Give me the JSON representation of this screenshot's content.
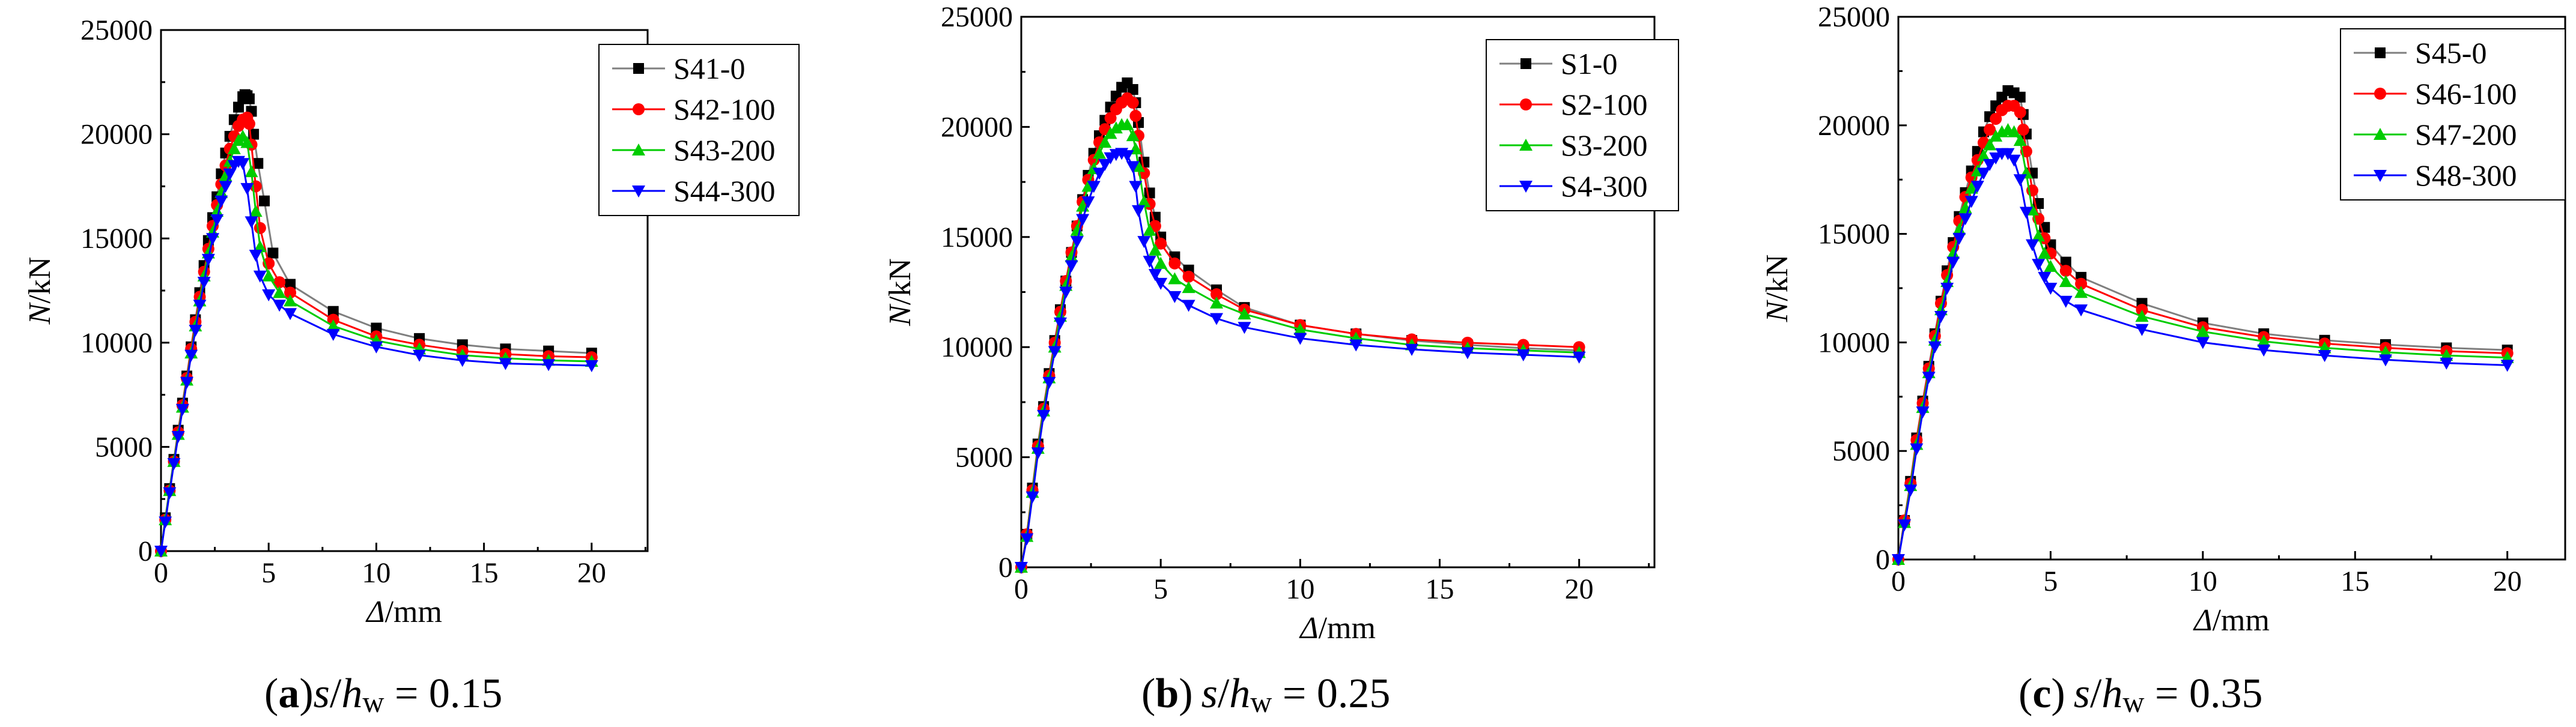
{
  "colors": {
    "series": [
      "#000000",
      "#ff0000",
      "#00cc00",
      "#0000ff"
    ],
    "axis": "#000000",
    "line_gray": "#7f7f7f"
  },
  "chart_data": [
    {
      "type": "line",
      "panel_label": "a",
      "caption": {
        "open": "(",
        "label": "a",
        "close": ")",
        "var_s": "s",
        "slash": "/",
        "var_h": "h",
        "sub": "w",
        "equals": " = ",
        "value": "0.15"
      },
      "xlabel": {
        "symbol": "Δ",
        "unit": "/mm"
      },
      "ylabel": {
        "symbol": "N",
        "unit": "/kN"
      },
      "xlim": [
        0,
        22.6
      ],
      "ylim": [
        0,
        25000
      ],
      "xticks": [
        "0",
        "5",
        "10",
        "15",
        "20"
      ],
      "yticks": [
        "0",
        "5000",
        "10000",
        "15000",
        "20000",
        "25000"
      ],
      "legend": "top-right",
      "series": [
        {
          "name": "S41-0",
          "marker": "square",
          "x": [
            0,
            0.2,
            0.4,
            0.6,
            0.8,
            1.0,
            1.2,
            1.4,
            1.6,
            1.8,
            2.0,
            2.2,
            2.4,
            2.6,
            2.8,
            3.0,
            3.2,
            3.4,
            3.6,
            3.8,
            3.9,
            4.0,
            4.1,
            4.2,
            4.3,
            4.5,
            4.8,
            5.2,
            6.0,
            8.0,
            10.0,
            12.0,
            14.0,
            16.0,
            18.0,
            20.0
          ],
          "y": [
            0,
            1600,
            3000,
            4400,
            5800,
            7100,
            8400,
            9800,
            11100,
            12400,
            13700,
            14900,
            16000,
            17000,
            18100,
            19100,
            19900,
            20700,
            21300,
            21800,
            21900,
            21850,
            21700,
            21100,
            20000,
            18600,
            16800,
            14300,
            12800,
            11500,
            10700,
            10200,
            9900,
            9700,
            9600,
            9500
          ]
        },
        {
          "name": "S42-100",
          "marker": "circle",
          "x": [
            0,
            0.2,
            0.4,
            0.6,
            0.8,
            1.0,
            1.2,
            1.4,
            1.6,
            1.8,
            2.0,
            2.2,
            2.4,
            2.6,
            2.8,
            3.0,
            3.2,
            3.4,
            3.6,
            3.8,
            4.0,
            4.1,
            4.2,
            4.4,
            4.6,
            5.0,
            5.5,
            6.0,
            8.0,
            10.0,
            12.0,
            14.0,
            16.0,
            18.0,
            20.0
          ],
          "y": [
            0,
            1500,
            2900,
            4300,
            5700,
            7000,
            8300,
            9700,
            11000,
            12200,
            13400,
            14500,
            15600,
            16600,
            17600,
            18500,
            19300,
            19900,
            20400,
            20700,
            20800,
            20500,
            19500,
            17500,
            15500,
            13800,
            12900,
            12400,
            11100,
            10300,
            9900,
            9600,
            9450,
            9350,
            9300
          ]
        },
        {
          "name": "S43-200",
          "marker": "triangle-up",
          "x": [
            0,
            0.2,
            0.4,
            0.6,
            0.8,
            1.0,
            1.2,
            1.4,
            1.6,
            1.8,
            2.0,
            2.2,
            2.4,
            2.6,
            2.8,
            3.0,
            3.2,
            3.4,
            3.6,
            3.8,
            4.0,
            4.2,
            4.4,
            4.6,
            5.0,
            5.5,
            6.0,
            8.0,
            10.0,
            12.0,
            14.0,
            16.0,
            18.0,
            20.0
          ],
          "y": [
            0,
            1500,
            2900,
            4300,
            5600,
            6900,
            8200,
            9500,
            10800,
            12000,
            13200,
            14300,
            15300,
            16300,
            17200,
            18000,
            18700,
            19300,
            19700,
            19900,
            19600,
            18200,
            16300,
            14600,
            13200,
            12400,
            12000,
            10800,
            10100,
            9700,
            9400,
            9250,
            9150,
            9100
          ]
        },
        {
          "name": "S44-300",
          "marker": "triangle-down",
          "x": [
            0,
            0.2,
            0.4,
            0.6,
            0.8,
            1.0,
            1.2,
            1.4,
            1.6,
            1.8,
            2.0,
            2.2,
            2.4,
            2.6,
            2.8,
            3.0,
            3.2,
            3.4,
            3.6,
            3.8,
            4.0,
            4.2,
            4.4,
            4.6,
            5.0,
            5.5,
            6.0,
            8.0,
            10.0,
            12.0,
            14.0,
            16.0,
            18.0,
            20.0
          ],
          "y": [
            0,
            1400,
            2800,
            4200,
            5500,
            6800,
            8100,
            9400,
            10600,
            11800,
            12900,
            14000,
            15000,
            15900,
            16800,
            17500,
            18100,
            18500,
            18700,
            18600,
            17400,
            15800,
            14200,
            13200,
            12300,
            11800,
            11400,
            10400,
            9800,
            9400,
            9150,
            9000,
            8950,
            8900
          ]
        }
      ]
    },
    {
      "type": "line",
      "panel_label": "b",
      "caption": {
        "open": "(",
        "label": "b",
        "close": ")",
        "var_s": "s",
        "slash": "/",
        "var_h": "h",
        "sub": "w",
        "equals": " = ",
        "value": "0.25"
      },
      "xlabel": {
        "symbol": "Δ",
        "unit": "/mm"
      },
      "ylabel": {
        "symbol": "N",
        "unit": "/kN"
      },
      "xlim": [
        0,
        22.7
      ],
      "ylim": [
        0,
        25000
      ],
      "xticks": [
        "0",
        "5",
        "10",
        "15",
        "20"
      ],
      "yticks": [
        "0",
        "5000",
        "10000",
        "15000",
        "20000",
        "25000"
      ],
      "legend": "top-right",
      "series": [
        {
          "name": "S1-0",
          "marker": "square",
          "x": [
            0,
            0.2,
            0.4,
            0.6,
            0.8,
            1.0,
            1.2,
            1.4,
            1.6,
            1.8,
            2.0,
            2.2,
            2.4,
            2.6,
            2.8,
            3.0,
            3.2,
            3.4,
            3.6,
            3.8,
            4.0,
            4.1,
            4.2,
            4.4,
            4.6,
            4.8,
            5.0,
            5.5,
            6.0,
            7.0,
            8.0,
            10.0,
            12.0,
            14.0,
            16.0,
            18.0,
            20.0
          ],
          "y": [
            0,
            1500,
            3600,
            5600,
            7300,
            8800,
            10300,
            11700,
            13000,
            14300,
            15500,
            16700,
            17800,
            18800,
            19600,
            20300,
            20900,
            21400,
            21800,
            22000,
            21700,
            21100,
            20200,
            18400,
            17000,
            15900,
            15000,
            14100,
            13500,
            12600,
            11800,
            11000,
            10600,
            10300,
            10100,
            9950,
            9850
          ]
        },
        {
          "name": "S2-100",
          "marker": "circle",
          "x": [
            0,
            0.2,
            0.4,
            0.6,
            0.8,
            1.0,
            1.2,
            1.4,
            1.6,
            1.8,
            2.0,
            2.2,
            2.4,
            2.6,
            2.8,
            3.0,
            3.2,
            3.4,
            3.6,
            3.8,
            4.0,
            4.1,
            4.2,
            4.4,
            4.6,
            4.8,
            5.0,
            5.5,
            6.0,
            7.0,
            8.0,
            10.0,
            12.0,
            14.0,
            16.0,
            18.0,
            20.0
          ],
          "y": [
            0,
            1500,
            3500,
            5500,
            7200,
            8700,
            10200,
            11600,
            13000,
            14300,
            15500,
            16600,
            17600,
            18500,
            19300,
            19900,
            20400,
            20800,
            21100,
            21300,
            21100,
            20500,
            19600,
            17900,
            16500,
            15500,
            14700,
            13800,
            13200,
            12400,
            11700,
            11000,
            10600,
            10350,
            10200,
            10100,
            10000
          ]
        },
        {
          "name": "S3-200",
          "marker": "triangle-up",
          "x": [
            0,
            0.2,
            0.4,
            0.6,
            0.8,
            1.0,
            1.2,
            1.4,
            1.6,
            1.8,
            2.0,
            2.2,
            2.4,
            2.6,
            2.8,
            3.0,
            3.2,
            3.4,
            3.6,
            3.8,
            4.0,
            4.1,
            4.2,
            4.4,
            4.6,
            4.8,
            5.0,
            5.5,
            6.0,
            7.0,
            8.0,
            10.0,
            12.0,
            14.0,
            16.0,
            18.0,
            20.0
          ],
          "y": [
            0,
            1400,
            3400,
            5400,
            7100,
            8600,
            10000,
            11400,
            12800,
            14100,
            15300,
            16400,
            17300,
            18100,
            18800,
            19300,
            19700,
            19950,
            20100,
            20100,
            19600,
            19000,
            18200,
            16600,
            15300,
            14400,
            13800,
            13100,
            12700,
            12000,
            11500,
            10800,
            10400,
            10100,
            9950,
            9850,
            9750
          ]
        },
        {
          "name": "S4-300",
          "marker": "triangle-down",
          "x": [
            0,
            0.2,
            0.4,
            0.6,
            0.8,
            1.0,
            1.2,
            1.4,
            1.6,
            1.8,
            2.0,
            2.2,
            2.4,
            2.6,
            2.8,
            3.0,
            3.2,
            3.4,
            3.6,
            3.8,
            4.0,
            4.1,
            4.2,
            4.4,
            4.6,
            4.8,
            5.0,
            5.5,
            6.0,
            7.0,
            8.0,
            10.0,
            12.0,
            14.0,
            16.0,
            18.0,
            20.0
          ],
          "y": [
            0,
            1300,
            3200,
            5200,
            6900,
            8400,
            9800,
            11100,
            12500,
            13700,
            14800,
            15800,
            16600,
            17300,
            17900,
            18300,
            18600,
            18750,
            18800,
            18700,
            18200,
            17300,
            16200,
            14800,
            13900,
            13300,
            12900,
            12300,
            11900,
            11300,
            10900,
            10400,
            10100,
            9900,
            9750,
            9650,
            9550
          ]
        }
      ]
    },
    {
      "type": "line",
      "panel_label": "c",
      "caption": {
        "open": "(",
        "label": "c",
        "close": ")",
        "var_s": "s",
        "slash": "/",
        "var_h": "h",
        "sub": "w",
        "equals": " = ",
        "value": "0.35"
      },
      "xlabel": {
        "symbol": "Δ",
        "unit": "/mm"
      },
      "ylabel": {
        "symbol": "N",
        "unit": "/kN"
      },
      "xlim": [
        0,
        21.9
      ],
      "ylim": [
        0,
        25000
      ],
      "xticks": [
        "0",
        "5",
        "10",
        "15",
        "20"
      ],
      "yticks": [
        "0",
        "5000",
        "10000",
        "15000",
        "20000",
        "25000"
      ],
      "legend": "top-right",
      "series": [
        {
          "name": "S45-0",
          "marker": "square",
          "x": [
            0,
            0.2,
            0.4,
            0.6,
            0.8,
            1.0,
            1.2,
            1.4,
            1.6,
            1.8,
            2.0,
            2.2,
            2.4,
            2.6,
            2.8,
            3.0,
            3.2,
            3.4,
            3.6,
            3.8,
            4.0,
            4.1,
            4.2,
            4.4,
            4.6,
            4.8,
            5.0,
            5.5,
            6.0,
            8.0,
            10.0,
            12.0,
            14.0,
            16.0,
            18.0,
            20.0
          ],
          "y": [
            0,
            1800,
            3600,
            5600,
            7300,
            8900,
            10400,
            11900,
            13300,
            14600,
            15800,
            16900,
            17900,
            18800,
            19700,
            20400,
            20900,
            21300,
            21600,
            21500,
            21300,
            20500,
            19600,
            17800,
            16400,
            15300,
            14500,
            13700,
            13000,
            11800,
            10900,
            10400,
            10100,
            9900,
            9750,
            9650
          ]
        },
        {
          "name": "S46-100",
          "marker": "circle",
          "x": [
            0,
            0.2,
            0.4,
            0.6,
            0.8,
            1.0,
            1.2,
            1.4,
            1.6,
            1.8,
            2.0,
            2.2,
            2.4,
            2.6,
            2.8,
            3.0,
            3.2,
            3.4,
            3.6,
            3.8,
            4.0,
            4.1,
            4.2,
            4.4,
            4.6,
            4.8,
            5.0,
            5.5,
            6.0,
            8.0,
            10.0,
            12.0,
            14.0,
            16.0,
            18.0,
            20.0
          ],
          "y": [
            0,
            1800,
            3500,
            5500,
            7200,
            8800,
            10300,
            11800,
            13100,
            14400,
            15600,
            16700,
            17600,
            18400,
            19200,
            19800,
            20300,
            20700,
            20900,
            20900,
            20600,
            19800,
            18800,
            17000,
            15700,
            14800,
            14100,
            13300,
            12700,
            11500,
            10700,
            10250,
            9950,
            9750,
            9600,
            9500
          ]
        },
        {
          "name": "S47-200",
          "marker": "triangle-up",
          "x": [
            0,
            0.2,
            0.4,
            0.6,
            0.8,
            1.0,
            1.2,
            1.4,
            1.6,
            1.8,
            2.0,
            2.2,
            2.4,
            2.6,
            2.8,
            3.0,
            3.2,
            3.4,
            3.6,
            3.8,
            4.0,
            4.2,
            4.4,
            4.6,
            4.8,
            5.0,
            5.5,
            6.0,
            8.0,
            10.0,
            12.0,
            14.0,
            16.0,
            18.0,
            20.0
          ],
          "y": [
            0,
            1700,
            3400,
            5300,
            7000,
            8600,
            10100,
            11500,
            12800,
            14100,
            15200,
            16200,
            17100,
            17900,
            18600,
            19100,
            19500,
            19700,
            19800,
            19700,
            19300,
            17800,
            16100,
            14900,
            14100,
            13500,
            12800,
            12300,
            11200,
            10500,
            10050,
            9750,
            9550,
            9400,
            9300
          ]
        },
        {
          "name": "S48-300",
          "marker": "triangle-down",
          "x": [
            0,
            0.2,
            0.4,
            0.6,
            0.8,
            1.0,
            1.2,
            1.4,
            1.6,
            1.8,
            2.0,
            2.2,
            2.4,
            2.6,
            2.8,
            3.0,
            3.2,
            3.4,
            3.6,
            3.8,
            4.0,
            4.2,
            4.4,
            4.6,
            4.8,
            5.0,
            5.5,
            6.0,
            8.0,
            10.0,
            12.0,
            14.0,
            16.0,
            18.0,
            20.0
          ],
          "y": [
            0,
            1600,
            3200,
            5100,
            6800,
            8400,
            9800,
            11200,
            12500,
            13700,
            14800,
            15700,
            16500,
            17200,
            17800,
            18200,
            18500,
            18700,
            18700,
            18400,
            17500,
            16000,
            14500,
            13600,
            13000,
            12500,
            11900,
            11500,
            10600,
            10000,
            9650,
            9400,
            9200,
            9050,
            8950
          ]
        }
      ]
    }
  ]
}
